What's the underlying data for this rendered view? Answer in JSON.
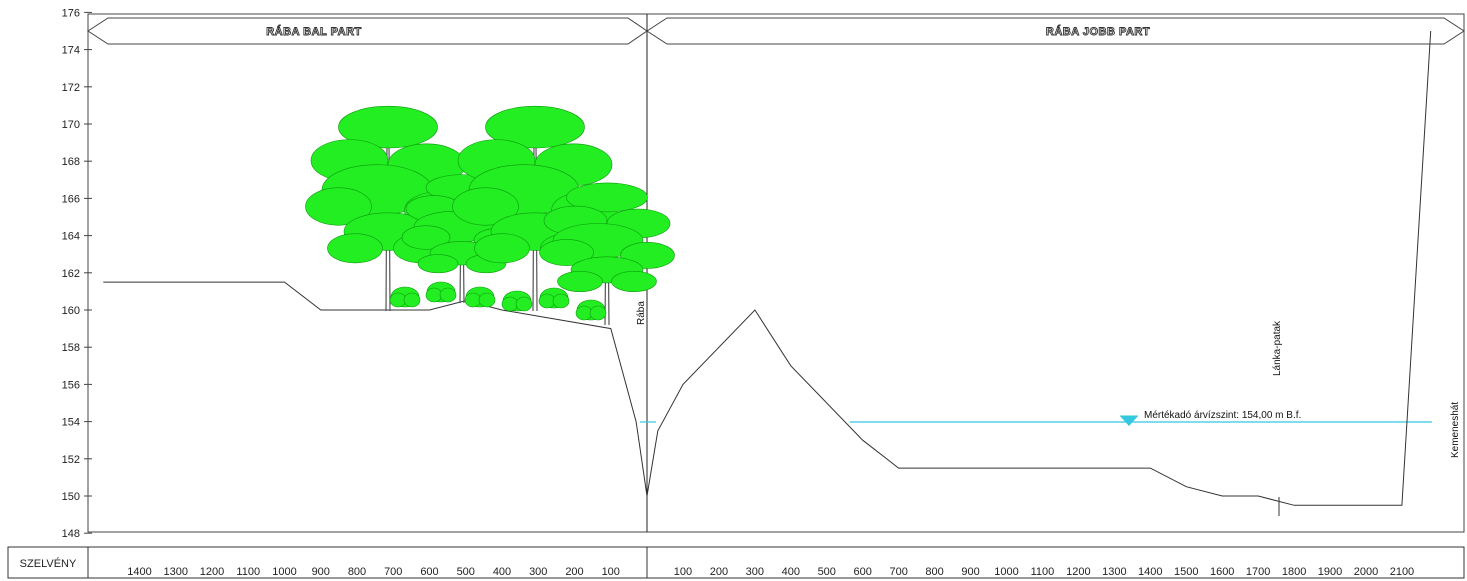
{
  "y_axis": {
    "ticks": [
      "176",
      "174",
      "172",
      "170",
      "168",
      "166",
      "164",
      "162",
      "160",
      "158",
      "156",
      "154",
      "152",
      "150",
      "148"
    ]
  },
  "banks": {
    "left": "RÁBA BAL PART",
    "right": "RÁBA JOBB PART"
  },
  "labels": {
    "raba": "Rába",
    "lanka": "Lánka-patak",
    "kemeneshat": "Kemeneshát",
    "water_level": "Mértékadó árvízszint: 154,00 m B.f."
  },
  "table": {
    "row_label": "SZELVÉNY"
  },
  "x_axis": {
    "left_ticks": [
      "1400",
      "1300",
      "1200",
      "1100",
      "1000",
      "900",
      "800",
      "700",
      "600",
      "500",
      "400",
      "300",
      "200",
      "100"
    ],
    "right_ticks": [
      "100",
      "200",
      "300",
      "400",
      "500",
      "600",
      "700",
      "800",
      "900",
      "1000",
      "1100",
      "1200",
      "1300",
      "1400",
      "1500",
      "1600",
      "1700",
      "1800",
      "1900",
      "2000",
      "2100"
    ]
  },
  "colors": {
    "water": "#33c7e0",
    "tree": "#22ee22",
    "line": "#333333"
  },
  "chart_data": {
    "type": "line",
    "ylim": [
      148,
      176
    ],
    "flood_level": 154.0,
    "left_profile": {
      "x": [
        1500,
        1000,
        900,
        600,
        500,
        400,
        100,
        30,
        0
      ],
      "y": [
        161.5,
        161.5,
        160,
        160,
        160.5,
        160,
        159,
        154,
        150
      ]
    },
    "right_profile": {
      "x": [
        0,
        30,
        100,
        300,
        400,
        600,
        700,
        1400,
        1500,
        1600,
        1700,
        1800,
        2100,
        2180
      ],
      "y": [
        150,
        153.5,
        156,
        160,
        157,
        153,
        151.5,
        151.5,
        150.5,
        150,
        150,
        149.5,
        149.5,
        175
      ]
    }
  }
}
